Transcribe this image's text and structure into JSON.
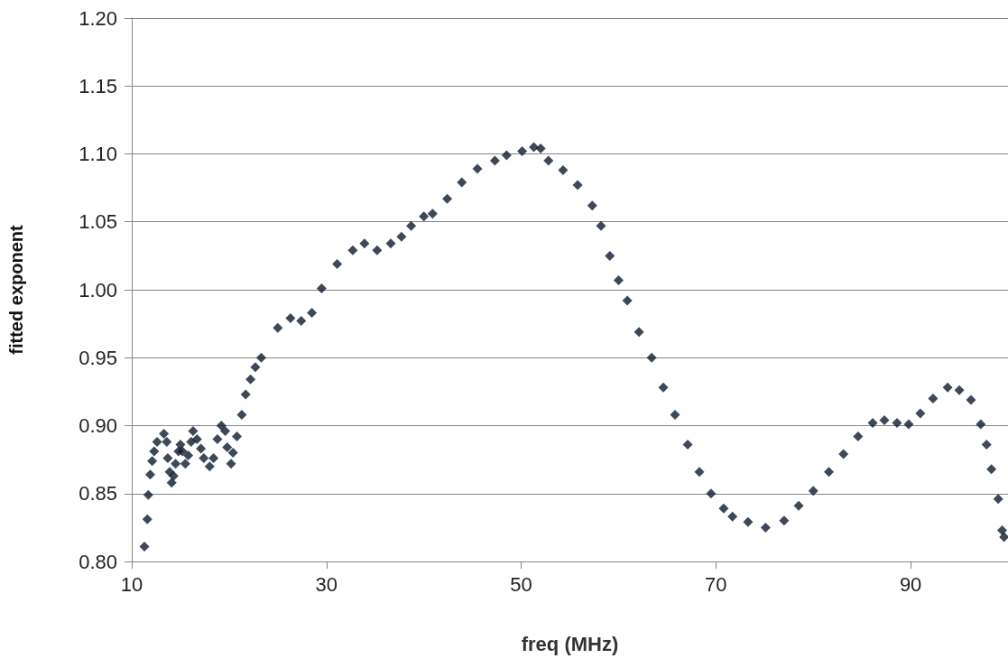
{
  "chart_data": {
    "type": "scatter",
    "xlabel": "freq (MHz)",
    "ylabel": "fitted exponent",
    "xlim": [
      10,
      100
    ],
    "xticks": [
      10,
      30,
      50,
      70,
      90
    ],
    "ylim": [
      0.8,
      1.2
    ],
    "yticks": [
      {
        "value": 0.8,
        "label": "0.80"
      },
      {
        "value": 0.85,
        "label": "0.85"
      },
      {
        "value": 0.9,
        "label": "0.90"
      },
      {
        "value": 0.95,
        "label": "0.95"
      },
      {
        "value": 1.0,
        "label": "1.00"
      },
      {
        "value": 1.05,
        "label": "1.05"
      },
      {
        "value": 1.1,
        "label": "1.10"
      },
      {
        "value": 1.15,
        "label": "1.15"
      },
      {
        "value": 1.2,
        "label": "1.20"
      }
    ],
    "grid": "y",
    "marker": "diamond",
    "series": [
      {
        "color": "#0d1b2e",
        "x": [
          11.3,
          11.6,
          11.7,
          11.9,
          12.1,
          12.3,
          12.6,
          13.3,
          13.6,
          13.7,
          13.9,
          14.1,
          14.3,
          14.5,
          14.8,
          15.0,
          15.2,
          15.5,
          15.8,
          16.1,
          16.3,
          16.7,
          17.1,
          17.4,
          18.0,
          18.4,
          18.8,
          19.2,
          19.6,
          19.8,
          20.2,
          20.4,
          20.8,
          21.3,
          21.7,
          22.2,
          22.7,
          23.3,
          25.0,
          26.3,
          27.4,
          28.5,
          29.5,
          31.1,
          32.7,
          33.9,
          35.2,
          36.6,
          37.7,
          38.7,
          40.0,
          40.9,
          42.4,
          43.9,
          45.5,
          47.3,
          48.5,
          50.1,
          51.3,
          52.0,
          52.8,
          54.3,
          55.8,
          57.3,
          58.2,
          59.1,
          60.0,
          60.9,
          62.1,
          63.4,
          64.6,
          65.8,
          67.1,
          68.3,
          69.5,
          70.8,
          71.7,
          73.3,
          75.1,
          77.0,
          78.5,
          80.0,
          81.6,
          83.1,
          84.6,
          86.1,
          87.3,
          88.6,
          89.8,
          91.0,
          92.3,
          93.8,
          95.0,
          96.2,
          97.2,
          97.8,
          98.3,
          99.0,
          99.4,
          99.6
        ],
        "values": [
          0.811,
          0.831,
          0.849,
          0.864,
          0.874,
          0.881,
          0.888,
          0.894,
          0.888,
          0.876,
          0.866,
          0.858,
          0.863,
          0.872,
          0.881,
          0.886,
          0.881,
          0.872,
          0.878,
          0.888,
          0.896,
          0.89,
          0.883,
          0.876,
          0.87,
          0.876,
          0.89,
          0.9,
          0.896,
          0.884,
          0.872,
          0.88,
          0.892,
          0.908,
          0.923,
          0.934,
          0.943,
          0.95,
          0.972,
          0.979,
          0.977,
          0.983,
          1.001,
          1.019,
          1.029,
          1.034,
          1.029,
          1.034,
          1.039,
          1.047,
          1.054,
          1.056,
          1.067,
          1.079,
          1.089,
          1.095,
          1.099,
          1.102,
          1.105,
          1.104,
          1.095,
          1.088,
          1.077,
          1.062,
          1.047,
          1.025,
          1.007,
          0.992,
          0.969,
          0.95,
          0.928,
          0.908,
          0.886,
          0.866,
          0.85,
          0.839,
          0.833,
          0.829,
          0.825,
          0.83,
          0.841,
          0.852,
          0.866,
          0.879,
          0.892,
          0.902,
          0.904,
          0.902,
          0.901,
          0.909,
          0.92,
          0.928,
          0.926,
          0.919,
          0.901,
          0.886,
          0.868,
          0.846,
          0.823,
          0.818
        ]
      }
    ]
  }
}
